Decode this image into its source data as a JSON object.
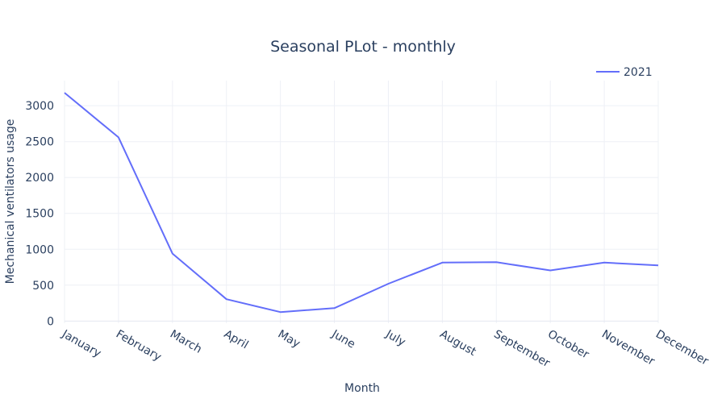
{
  "chart_data": {
    "type": "line",
    "title": "Seasonal PLot - monthly",
    "xlabel": "Month",
    "ylabel": "Mechanical ventilators usage",
    "categories": [
      "January",
      "February",
      "March",
      "April",
      "May",
      "June",
      "July",
      "August",
      "September",
      "October",
      "November",
      "December"
    ],
    "series": [
      {
        "name": "2021",
        "color": "#636efa",
        "values": [
          3180,
          2560,
          940,
          305,
          125,
          180,
          520,
          815,
          820,
          705,
          815,
          775
        ]
      }
    ],
    "ylim": [
      -30,
      3350
    ],
    "yticks": [
      0,
      500,
      1000,
      1500,
      2000,
      2500,
      3000
    ],
    "grid": true,
    "legend_position": "top-right"
  }
}
